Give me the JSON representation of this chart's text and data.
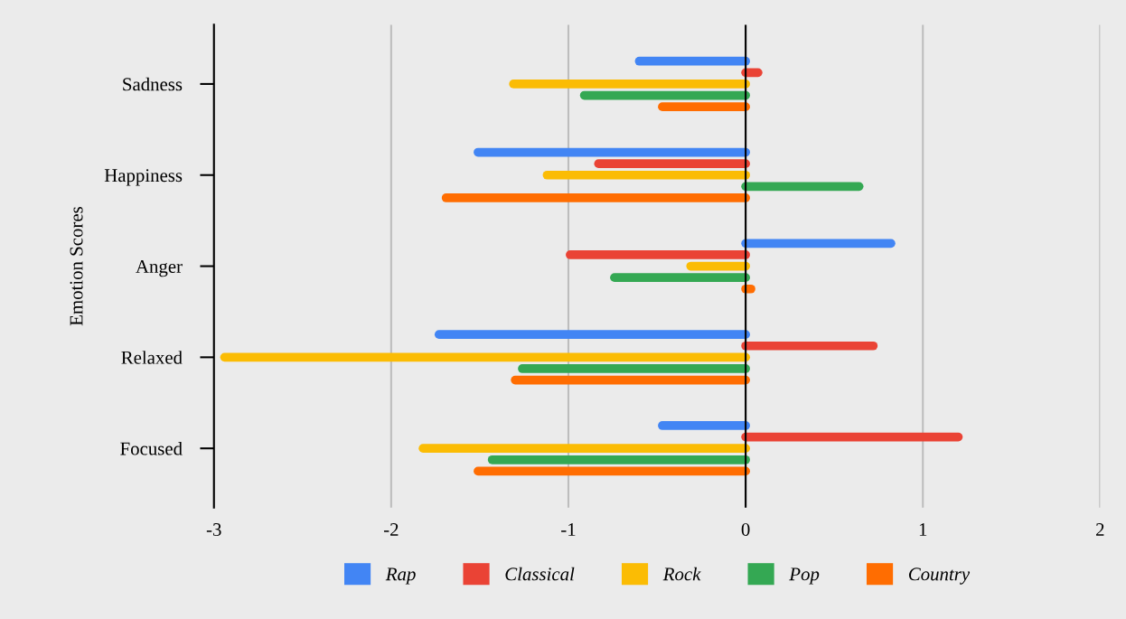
{
  "chart_data": {
    "type": "bar",
    "orientation": "horizontal",
    "ylabel": "Emotion Scores",
    "categories": [
      "Sadness",
      "Happiness",
      "Anger",
      "Relaxed",
      "Focused"
    ],
    "series": [
      {
        "name": "Rap",
        "color": "#4285f4",
        "values": [
          -0.6,
          -1.51,
          0.82,
          -1.73,
          -0.47
        ]
      },
      {
        "name": "Classical",
        "color": "#ea4335",
        "values": [
          0.07,
          -0.83,
          -0.99,
          0.72,
          1.2
        ]
      },
      {
        "name": "Rock",
        "color": "#fbbc04",
        "values": [
          -1.31,
          -1.12,
          -0.31,
          -2.94,
          -1.82
        ]
      },
      {
        "name": "Pop",
        "color": "#34a853",
        "values": [
          -0.91,
          0.64,
          -0.74,
          -1.26,
          -1.43
        ]
      },
      {
        "name": "Country",
        "color": "#ff6d01",
        "values": [
          -0.47,
          -1.69,
          0.03,
          -1.3,
          -1.51
        ]
      }
    ],
    "xlim": [
      -3,
      2
    ],
    "xticks": [
      -3,
      -2,
      -1,
      0,
      1,
      2
    ],
    "grid": "x",
    "legend": "bottom"
  }
}
